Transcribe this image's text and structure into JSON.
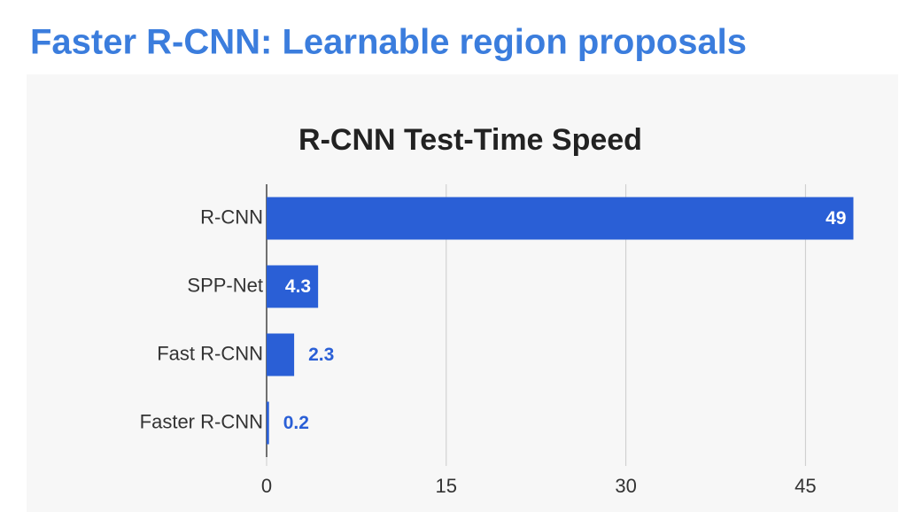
{
  "slide_title": "Faster R-CNN: Learnable region proposals",
  "chart_data": {
    "type": "bar",
    "orientation": "horizontal",
    "title": "R-CNN Test-Time Speed",
    "categories": [
      "R-CNN",
      "SPP-Net",
      "Fast R-CNN",
      "Faster R-CNN"
    ],
    "values": [
      49,
      4.3,
      2.3,
      0.2
    ],
    "color": "#2a5fd6",
    "xlim": [
      0,
      50
    ],
    "xticks": [
      0,
      15,
      30,
      45
    ],
    "grid": true
  }
}
